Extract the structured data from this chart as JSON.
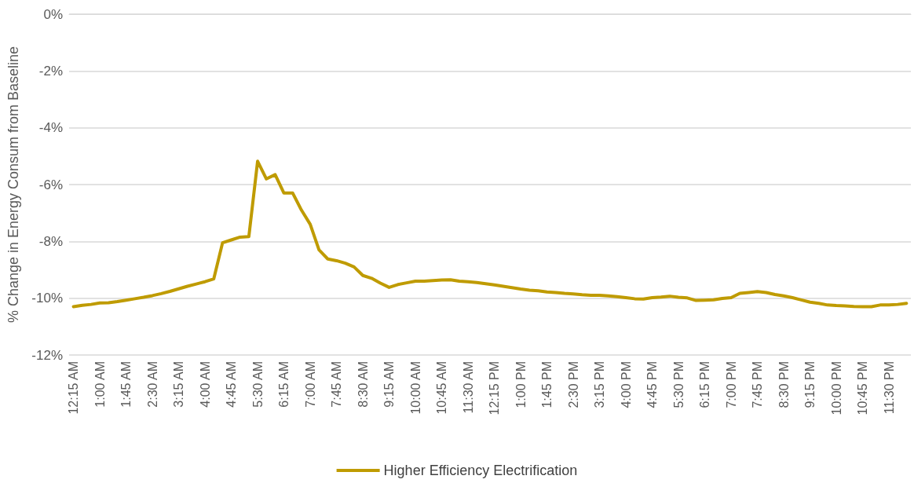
{
  "chart_data": {
    "type": "line",
    "ylabel": "% Change in Energy Consum from Baseline",
    "categories": [
      "12:15 AM",
      null,
      null,
      "1:00 AM",
      null,
      null,
      "1:45 AM",
      null,
      null,
      "2:30 AM",
      null,
      null,
      "3:15 AM",
      null,
      null,
      "4:00 AM",
      null,
      null,
      "4:45 AM",
      null,
      null,
      "5:30 AM",
      null,
      null,
      "6:15 AM",
      null,
      null,
      "7:00 AM",
      null,
      null,
      "7:45 AM",
      null,
      null,
      "8:30 AM",
      null,
      null,
      "9:15 AM",
      null,
      null,
      "10:00 AM",
      null,
      null,
      "10:45 AM",
      null,
      null,
      "11:30 AM",
      null,
      null,
      "12:15 PM",
      null,
      null,
      "1:00 PM",
      null,
      null,
      "1:45 PM",
      null,
      null,
      "2:30 PM",
      null,
      null,
      "3:15 PM",
      null,
      null,
      "4:00 PM",
      null,
      null,
      "4:45 PM",
      null,
      null,
      "5:30 PM",
      null,
      null,
      "6:15 PM",
      null,
      null,
      "7:00 PM",
      null,
      null,
      "7:45 PM",
      null,
      null,
      "8:30 PM",
      null,
      null,
      "9:15 PM",
      null,
      null,
      "10:00 PM",
      null,
      null,
      "10:45 PM",
      null,
      null,
      "11:30 PM",
      null,
      null
    ],
    "series": [
      {
        "name": "Higher Efficiency Electrification",
        "color": "#bf9b00",
        "values": [
          -10.3,
          -10.25,
          -10.22,
          -10.17,
          -10.16,
          -10.12,
          -10.07,
          -10.02,
          -9.97,
          -9.91,
          -9.84,
          -9.76,
          -9.67,
          -9.58,
          -9.5,
          -9.42,
          -9.32,
          -8.05,
          -7.95,
          -7.85,
          -7.83,
          -5.18,
          -5.8,
          -5.65,
          -6.3,
          -6.3,
          -6.9,
          -7.4,
          -8.3,
          -8.62,
          -8.68,
          -8.77,
          -8.9,
          -9.2,
          -9.3,
          -9.47,
          -9.62,
          -9.52,
          -9.46,
          -9.4,
          -9.4,
          -9.38,
          -9.36,
          -9.35,
          -9.4,
          -9.42,
          -9.45,
          -9.49,
          -9.53,
          -9.58,
          -9.63,
          -9.68,
          -9.72,
          -9.74,
          -9.78,
          -9.8,
          -9.83,
          -9.85,
          -9.88,
          -9.9,
          -9.9,
          -9.92,
          -9.95,
          -9.98,
          -10.02,
          -10.03,
          -9.98,
          -9.96,
          -9.93,
          -9.97,
          -9.99,
          -10.08,
          -10.07,
          -10.06,
          -10.01,
          -9.98,
          -9.83,
          -9.8,
          -9.77,
          -9.8,
          -9.87,
          -9.92,
          -9.98,
          -10.06,
          -10.14,
          -10.18,
          -10.24,
          -10.26,
          -10.27,
          -10.29,
          -10.3,
          -10.3,
          -10.24,
          -10.24,
          -10.22,
          -10.18
        ]
      }
    ],
    "ylim": [
      -12,
      0
    ],
    "yticks": [
      {
        "value": -12,
        "label": "-12%"
      },
      {
        "value": -10,
        "label": "-10%"
      },
      {
        "value": -8,
        "label": "-8%"
      },
      {
        "value": -6,
        "label": "-6%"
      },
      {
        "value": -4,
        "label": "-4%"
      },
      {
        "value": -2,
        "label": "-2%"
      },
      {
        "value": 0,
        "label": "0%"
      }
    ],
    "grid": "y",
    "legend": "bottom",
    "marker": "none",
    "line_style": "solid"
  }
}
